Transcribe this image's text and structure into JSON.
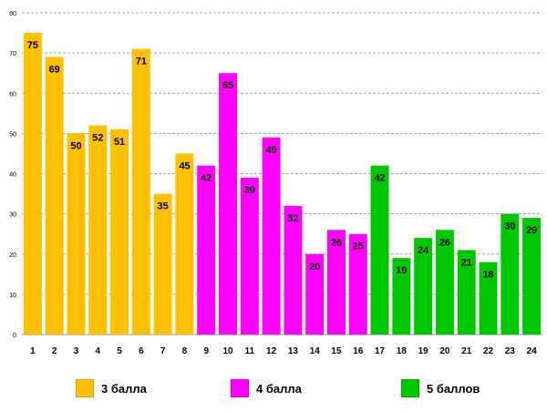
{
  "chart_data": {
    "type": "bar",
    "title": "",
    "xlabel": "",
    "ylabel": "",
    "ylim": [
      0,
      80
    ],
    "yticks": [
      "0",
      "10",
      "20",
      "30",
      "40",
      "50",
      "60",
      "70",
      "80"
    ],
    "grid": true,
    "categories": [
      "1",
      "2",
      "3",
      "4",
      "5",
      "6",
      "7",
      "8",
      "9",
      "10",
      "11",
      "12",
      "13",
      "14",
      "15",
      "16",
      "17",
      "18",
      "19",
      "20",
      "21",
      "22",
      "23",
      "24"
    ],
    "values": [
      75,
      69,
      50,
      52,
      51,
      71,
      35,
      45,
      42,
      65,
      39,
      49,
      32,
      20,
      26,
      25,
      42,
      19,
      24,
      26,
      21,
      18,
      30,
      29
    ],
    "groups": [
      0,
      0,
      0,
      0,
      0,
      0,
      0,
      0,
      1,
      1,
      1,
      1,
      1,
      1,
      1,
      1,
      2,
      2,
      2,
      2,
      2,
      2,
      2,
      2
    ],
    "legend": [
      {
        "label": "3 балла",
        "color": "#FFC000"
      },
      {
        "label": "4 балла",
        "color": "#FF00FF"
      },
      {
        "label": "5 баллов",
        "color": "#00C800"
      }
    ]
  }
}
